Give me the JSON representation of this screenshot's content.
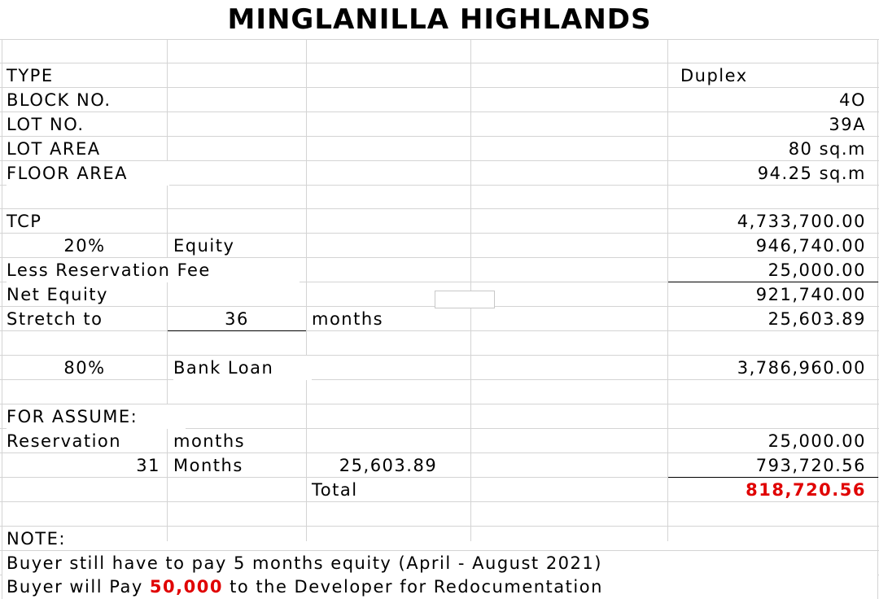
{
  "title": "MINGLANILLA HIGHLANDS",
  "details": {
    "type_label": "TYPE",
    "type_value": "Duplex",
    "block_label": "BLOCK NO.",
    "block_value": "4O",
    "lot_label": "LOT NO.",
    "lot_value": "39A",
    "lot_area_label": "LOT AREA",
    "lot_area_value": "80 sq.m",
    "floor_area_label": "FLOOR AREA",
    "floor_area_value": "94.25 sq.m"
  },
  "computation": {
    "tcp_label": "TCP",
    "tcp_value": "4,733,700.00",
    "equity_pct": "20%",
    "equity_label": "Equity",
    "equity_value": "946,740.00",
    "reservation_fee_label": "Less Reservation Fee",
    "reservation_fee_value": "25,000.00",
    "net_equity_label": "Net Equity",
    "net_equity_value": "921,740.00",
    "stretch_label": "Stretch to",
    "stretch_months": "36",
    "stretch_unit": "months",
    "stretch_value": "25,603.89",
    "loan_pct": "80%",
    "loan_label": "Bank Loan",
    "loan_value": "3,786,960.00"
  },
  "assume": {
    "heading": "FOR ASSUME:",
    "reservation_label": "Reservation",
    "reservation_unit": "months",
    "reservation_value": "25,000.00",
    "months_count": "31",
    "months_label": "Months",
    "monthly_amount": "25,603.89",
    "months_value": "793,720.56",
    "total_label": "Total",
    "total_value": "818,720.56",
    "total_color": "#e00000"
  },
  "note": {
    "heading": "NOTE:",
    "line1": "Buyer still have to pay 5 months equity (April - August 2021)",
    "line2_prefix": "Buyer will Pay ",
    "line2_amount": "50,000",
    "line2_suffix": " to the Developer for Redocumentation"
  }
}
